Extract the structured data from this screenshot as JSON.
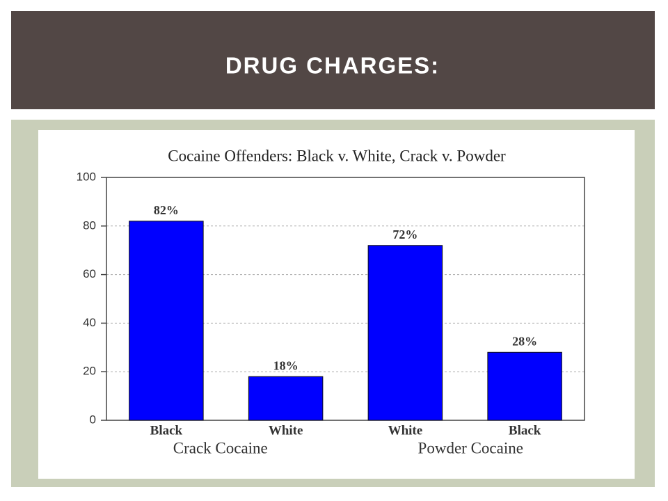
{
  "slide_title": "DRUG CHARGES:",
  "chart_data": {
    "type": "bar",
    "title": "Cocaine Offenders: Black v. White, Crack v. Powder",
    "categories": [
      "Black",
      "White",
      "White",
      "Black"
    ],
    "group_labels": [
      "Crack Cocaine",
      "Powder Cocaine"
    ],
    "values": [
      82,
      18,
      72,
      28
    ],
    "value_labels": [
      "82%",
      "18%",
      "72%",
      "28%"
    ],
    "color": "#0000ff",
    "ylim": [
      0,
      100
    ],
    "yticks": [
      0,
      20,
      40,
      60,
      80,
      100
    ],
    "grid": true
  }
}
